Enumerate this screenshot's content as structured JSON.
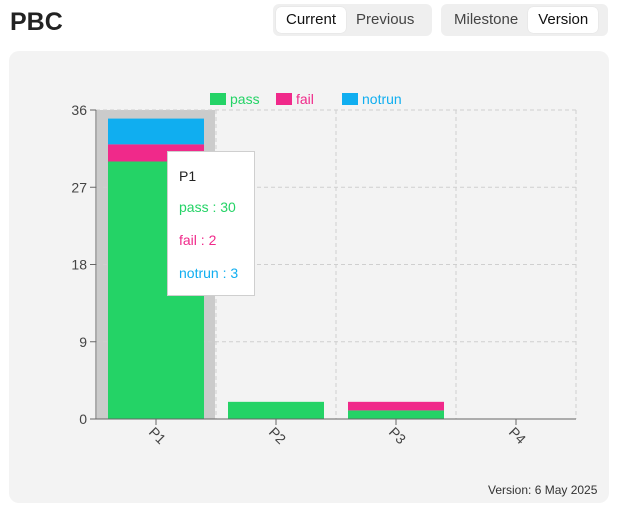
{
  "header": {
    "title": "PBC",
    "toggle_a": [
      {
        "label": "Current",
        "active": true
      },
      {
        "label": "Previous",
        "active": false
      }
    ],
    "toggle_b": [
      {
        "label": "Milestone",
        "active": false
      },
      {
        "label": "Version",
        "active": true
      }
    ]
  },
  "footer": {
    "version_text": "Version: 6 May 2025"
  },
  "tooltip": {
    "title": "P1",
    "rows": [
      {
        "text": "pass : 30",
        "color": "#24d366"
      },
      {
        "text": "fail : 2",
        "color": "#f0298a"
      },
      {
        "text": "notrun : 3",
        "color": "#10aef0"
      }
    ]
  },
  "chart_data": {
    "type": "bar",
    "stacked": true,
    "categories": [
      "P1",
      "P2",
      "P3",
      "P4"
    ],
    "series": [
      {
        "name": "pass",
        "color": "#24d366",
        "values": [
          30,
          2,
          1,
          0
        ]
      },
      {
        "name": "fail",
        "color": "#f0298a",
        "values": [
          2,
          0,
          1,
          0
        ]
      },
      {
        "name": "notrun",
        "color": "#10aef0",
        "values": [
          3,
          0,
          0,
          0
        ]
      }
    ],
    "yticks": [
      0,
      9,
      18,
      27,
      36
    ],
    "ylim": [
      0,
      36
    ],
    "grid": true,
    "legend": "top-center",
    "highlighted_category": "P1"
  }
}
